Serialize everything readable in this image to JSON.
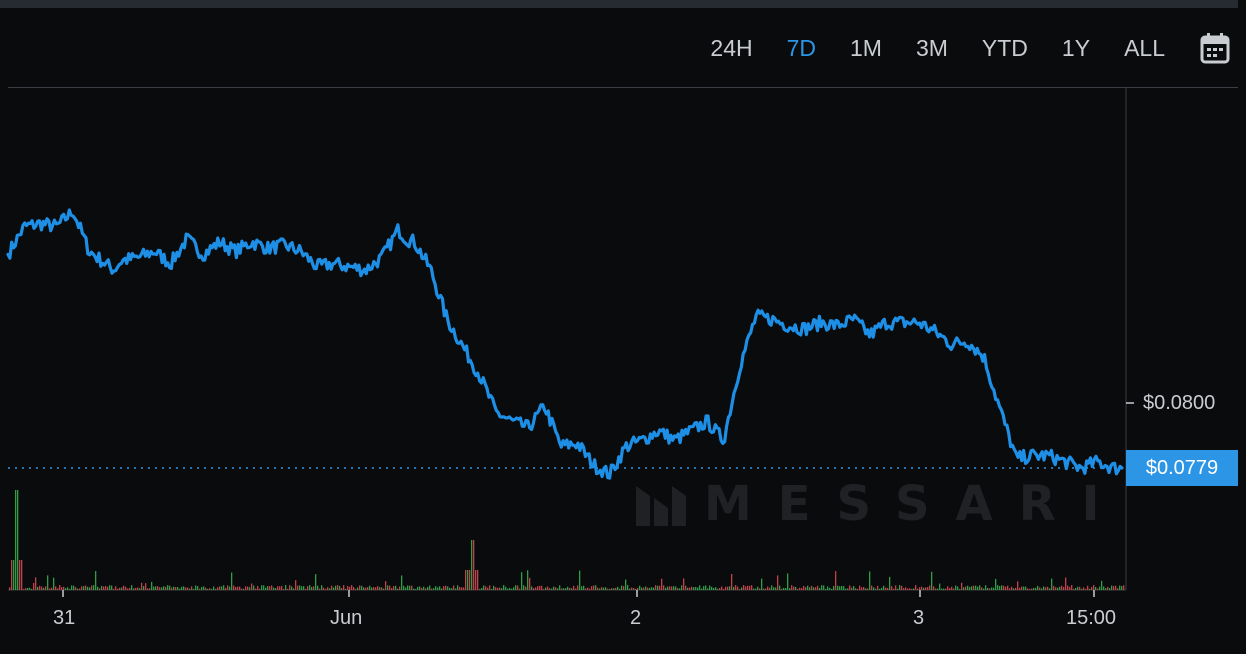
{
  "toolbar": {
    "ranges": [
      "24H",
      "7D",
      "1M",
      "3M",
      "YTD",
      "1Y",
      "ALL"
    ],
    "active_range": "7D",
    "calendar_icon": "calendar-icon"
  },
  "watermark": {
    "text": "MESSARI",
    "icon": "messari-logo"
  },
  "colors": {
    "line": "#1e8fe6",
    "accent": "#2d95e6",
    "volume_up": "#2f9e44",
    "volume_down": "#c2414b",
    "background": "#0a0b0d"
  },
  "chart_data": {
    "type": "line",
    "x_ticks": [
      "31",
      "Jun",
      "2",
      "3",
      "15:00"
    ],
    "y_ticks": [
      "$0.0800"
    ],
    "current_price": 0.0779,
    "current_price_label": "$0.0779",
    "price_keypoints_hours": [
      0,
      2,
      4,
      6,
      8,
      10,
      12,
      13,
      14,
      16,
      18,
      20,
      22,
      24,
      26,
      28,
      30,
      32,
      34,
      36,
      38,
      40,
      42,
      44,
      46,
      48,
      49,
      50,
      52,
      54,
      56,
      58,
      60,
      62,
      64,
      66,
      68,
      70,
      72,
      74,
      76,
      78,
      80,
      82,
      84,
      86,
      88,
      90,
      92,
      94,
      96,
      98,
      100,
      102,
      104,
      106,
      108,
      110,
      112,
      114,
      116,
      118,
      120,
      122,
      124,
      126,
      128,
      130,
      132,
      134,
      136
    ],
    "price_keypoints": [
      0.0848,
      0.0857,
      0.0858,
      0.0857,
      0.0862,
      0.0849,
      0.0845,
      0.0843,
      0.0846,
      0.0847,
      0.0849,
      0.0845,
      0.0853,
      0.0848,
      0.0852,
      0.0849,
      0.0852,
      0.085,
      0.0851,
      0.0849,
      0.0844,
      0.0845,
      0.0844,
      0.0843,
      0.0847,
      0.0856,
      0.0853,
      0.0852,
      0.0843,
      0.0827,
      0.0818,
      0.0809,
      0.0797,
      0.0794,
      0.0792,
      0.0799,
      0.0786,
      0.0787,
      0.078,
      0.0777,
      0.0786,
      0.0788,
      0.0791,
      0.0788,
      0.0791,
      0.0794,
      0.0788,
      0.0812,
      0.0828,
      0.0827,
      0.0825,
      0.0824,
      0.0826,
      0.0825,
      0.0827,
      0.0822,
      0.0826,
      0.0826,
      0.0826,
      0.0823,
      0.0819,
      0.082,
      0.0815,
      0.0798,
      0.0782,
      0.0783,
      0.0783,
      0.0781,
      0.0779,
      0.0781,
      0.0779
    ],
    "y_range": [
      0.077,
      0.087
    ],
    "x_range_hours": [
      0,
      137
    ],
    "volume": {
      "spikes_hours": [
        1,
        57
      ],
      "baseline": "low"
    },
    "grid": false,
    "legend": "none"
  }
}
